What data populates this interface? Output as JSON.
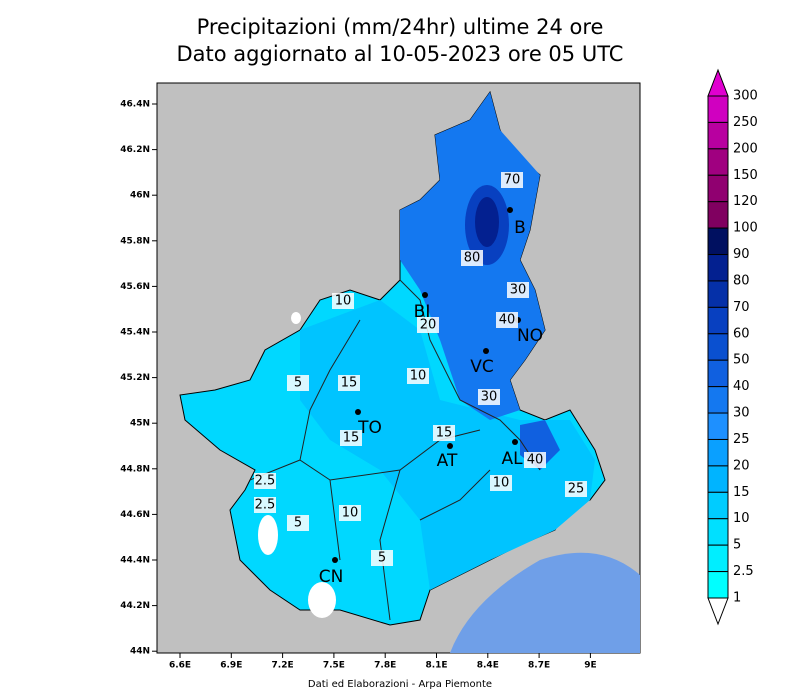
{
  "title": [
    "Precipitazioni (mm/24hr) ultime 24 ore",
    "Dato aggiornato al 10-05-2023 ore 05 UTC"
  ],
  "lon_labels": [
    "6.6E",
    "6.9E",
    "7.2E",
    "7.5E",
    "7.8E",
    "8.1E",
    "8.4E",
    "8.7E",
    "9E"
  ],
  "lat_labels": [
    "46.4N",
    "46.2N",
    "46N",
    "45.8N",
    "45.6N",
    "45.4N",
    "45.2N",
    "45N",
    "44.8N",
    "44.6N",
    "44.4N",
    "44.2N",
    "44N"
  ],
  "colorbar": {
    "levels": [
      300,
      250,
      200,
      150,
      120,
      100,
      90,
      80,
      70,
      60,
      50,
      40,
      30,
      25,
      20,
      15,
      10,
      5,
      2.5,
      1
    ],
    "colors": [
      "#e000d0",
      "#d000c0",
      "#b800a0",
      "#a00080",
      "#900070",
      "#800060",
      "#001060",
      "#032090",
      "#0530a8",
      "#0840c0",
      "#0a50d0",
      "#1060e0",
      "#1478f0",
      "#1e90ff",
      "#0aa0ff",
      "#00b4ff",
      "#00ccff",
      "#00e0ff",
      "#00eeff",
      "#00ffff",
      "#ffffff"
    ]
  },
  "cities": [
    "TO",
    "BI",
    "VC",
    "NO",
    "B",
    "AT",
    "AL",
    "CN"
  ],
  "contour_labels": [
    "70",
    "80",
    "10",
    "20",
    "30",
    "40",
    "5",
    "15",
    "10",
    "30",
    "15",
    "15",
    "40",
    "10",
    "25",
    "2.5",
    "2.5",
    "5",
    "10",
    "5"
  ],
  "footer": "Dati ed Elaborazioni - Arpa Piemonte"
}
